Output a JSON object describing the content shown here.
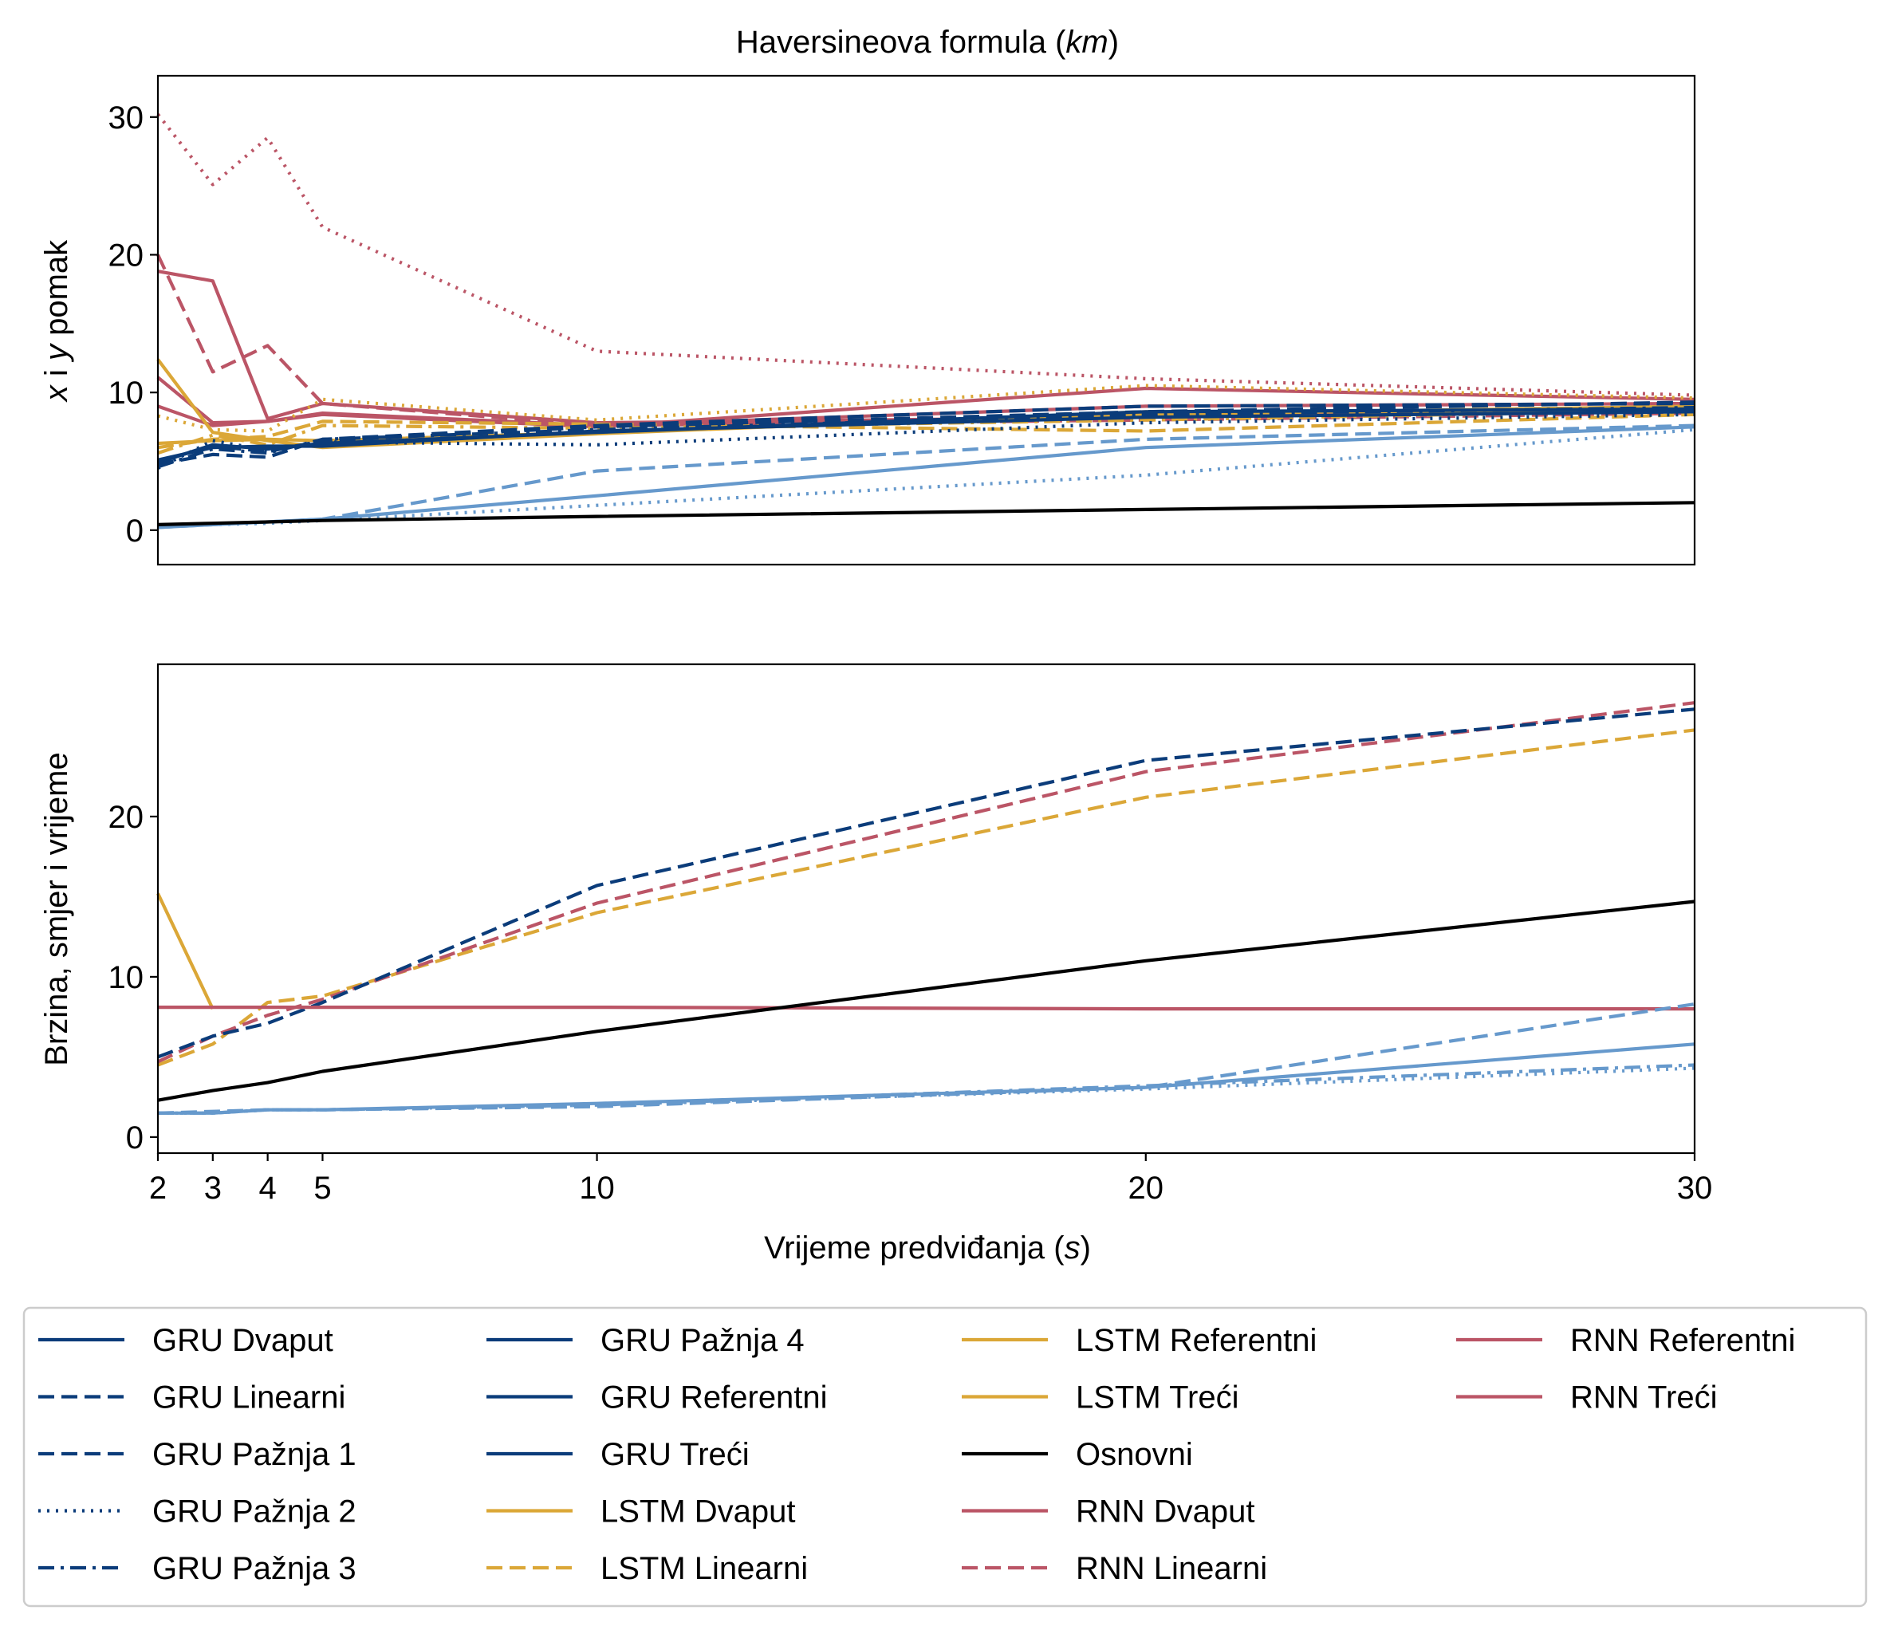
{
  "chart_data": {
    "type": "line",
    "x": [
      2,
      3,
      4,
      5,
      10,
      20,
      30
    ],
    "xlabel": "Vrijeme predviđanja (s)",
    "xticks": [
      2,
      3,
      4,
      5,
      10,
      20,
      30
    ],
    "xlim": [
      2,
      30
    ],
    "legend_placement": "bottom",
    "colors": {
      "gru": "#0b3c7a",
      "gru_light": "#6699cc",
      "lstm": "#dba737",
      "rnn": "#bb5566",
      "base": "#000000"
    },
    "legend": [
      {
        "label": "GRU Dvaput",
        "color": "#0b3c7a",
        "dash": "solid"
      },
      {
        "label": "GRU Linearni",
        "color": "#0b3c7a",
        "dash": "dashed"
      },
      {
        "label": "GRU Pažnja 1",
        "color": "#0b3c7a",
        "dash": "dashed"
      },
      {
        "label": "GRU Pažnja 2",
        "color": "#0b3c7a",
        "dash": "dotted"
      },
      {
        "label": "GRU Pažnja 3",
        "color": "#0b3c7a",
        "dash": "dashdot"
      },
      {
        "label": "GRU Pažnja 4",
        "color": "#0b3c7a",
        "dash": "solid"
      },
      {
        "label": "GRU Referentni",
        "color": "#0b3c7a",
        "dash": "solid"
      },
      {
        "label": "GRU Treći",
        "color": "#0b3c7a",
        "dash": "solid"
      },
      {
        "label": "LSTM Dvaput",
        "color": "#dba737",
        "dash": "solid"
      },
      {
        "label": "LSTM Linearni",
        "color": "#dba737",
        "dash": "dashed"
      },
      {
        "label": "LSTM Referentni",
        "color": "#dba737",
        "dash": "solid"
      },
      {
        "label": "LSTM Treći",
        "color": "#dba737",
        "dash": "solid"
      },
      {
        "label": "Osnovni",
        "color": "#000000",
        "dash": "solid"
      },
      {
        "label": "RNN Dvaput",
        "color": "#bb5566",
        "dash": "solid"
      },
      {
        "label": "RNN Linearni",
        "color": "#bb5566",
        "dash": "dashed"
      },
      {
        "label": "RNN Referentni",
        "color": "#bb5566",
        "dash": "solid"
      },
      {
        "label": "RNN Treći",
        "color": "#bb5566",
        "dash": "solid"
      }
    ],
    "panels": [
      {
        "title": "Haversineova formula (km)",
        "ylabel": "x i y pomak",
        "ylim": [
          -2.5,
          33
        ],
        "yticks": [
          0,
          10,
          20,
          30
        ],
        "series": [
          {
            "color": "#bb5566",
            "dash": "dotted",
            "values": [
              30.2,
              25.1,
              28.5,
              22.0,
              13.0,
              11.0,
              9.8
            ]
          },
          {
            "color": "#bb5566",
            "dash": "solid",
            "values": [
              18.8,
              18.1,
              8.1,
              9.2,
              7.8,
              8.2,
              8.8
            ]
          },
          {
            "color": "#bb5566",
            "dash": "dashed",
            "values": [
              20.0,
              11.5,
              13.4,
              9.2,
              7.6,
              8.0,
              8.5
            ]
          },
          {
            "color": "#bb5566",
            "dash": "solid",
            "values": [
              11.1,
              7.8,
              7.9,
              8.4,
              7.5,
              10.3,
              9.5
            ]
          },
          {
            "color": "#bb5566",
            "dash": "solid",
            "values": [
              9.0,
              7.6,
              7.9,
              8.5,
              7.6,
              9.0,
              9.2
            ]
          },
          {
            "color": "#dba737",
            "dash": "solid",
            "values": [
              12.4,
              7.1,
              6.5,
              6.0,
              7.0,
              8.6,
              8.6
            ]
          },
          {
            "color": "#dba737",
            "dash": "dotted",
            "values": [
              8.3,
              7.3,
              7.2,
              9.5,
              8.0,
              10.5,
              9.6
            ]
          },
          {
            "color": "#dba737",
            "dash": "dashed",
            "values": [
              6.0,
              6.6,
              6.8,
              7.9,
              7.7,
              7.2,
              8.4
            ]
          },
          {
            "color": "#dba737",
            "dash": "solid",
            "values": [
              6.3,
              6.5,
              6.6,
              6.5,
              7.1,
              8.4,
              9.0
            ]
          },
          {
            "color": "#dba737",
            "dash": "dashdot",
            "values": [
              5.6,
              6.9,
              6.2,
              7.6,
              7.4,
              8.0,
              8.7
            ]
          },
          {
            "color": "#0b3c7a",
            "dash": "dashed",
            "values": [
              4.8,
              5.5,
              5.3,
              6.6,
              7.6,
              9.0,
              9.2
            ]
          },
          {
            "color": "#0b3c7a",
            "dash": "dotted",
            "values": [
              4.5,
              6.5,
              5.8,
              6.4,
              6.2,
              7.8,
              8.4
            ]
          },
          {
            "color": "#0b3c7a",
            "dash": "solid",
            "values": [
              4.9,
              6.2,
              5.9,
              6.3,
              7.1,
              8.6,
              8.8
            ]
          },
          {
            "color": "#0b3c7a",
            "dash": "dashdot",
            "values": [
              4.6,
              5.9,
              5.6,
              6.6,
              7.3,
              8.4,
              8.9
            ]
          },
          {
            "color": "#0b3c7a",
            "dash": "dashed",
            "values": [
              5.0,
              6.1,
              5.7,
              6.5,
              7.5,
              8.6,
              9.3
            ]
          },
          {
            "color": "#0b3c7a",
            "dash": "solid",
            "values": [
              5.1,
              6.0,
              6.1,
              6.1,
              7.2,
              8.2,
              8.6
            ]
          },
          {
            "color": "#6699cc",
            "dash": "dashed",
            "values": [
              0.2,
              0.4,
              0.6,
              0.8,
              4.3,
              6.6,
              7.6
            ]
          },
          {
            "color": "#6699cc",
            "dash": "solid",
            "values": [
              0.2,
              0.4,
              0.6,
              0.8,
              2.5,
              6.0,
              7.5
            ]
          },
          {
            "color": "#6699cc",
            "dash": "dotted",
            "values": [
              0.3,
              0.4,
              0.5,
              0.7,
              1.8,
              4.0,
              7.3
            ]
          },
          {
            "color": "#000000",
            "dash": "solid",
            "values": [
              0.4,
              0.5,
              0.6,
              0.7,
              1.0,
              1.5,
              2.0
            ]
          }
        ]
      },
      {
        "title": "",
        "ylabel": "Brzina, smjer i vrijeme",
        "ylim": [
          -1.0,
          29.5
        ],
        "yticks": [
          0,
          10,
          20
        ],
        "series": [
          {
            "color": "#dba737",
            "dash": "solid",
            "values": [
              15.2,
              8.0,
              null,
              null,
              null,
              null,
              null
            ]
          },
          {
            "color": "#dba737",
            "dash": "dashed",
            "values": [
              4.5,
              5.8,
              8.4,
              8.8,
              14.0,
              21.2,
              25.4
            ]
          },
          {
            "color": "#bb5566",
            "dash": "dashed",
            "values": [
              4.7,
              6.3,
              7.6,
              8.6,
              14.6,
              22.8,
              27.1
            ]
          },
          {
            "color": "#0b3c7a",
            "dash": "dashed",
            "values": [
              5.0,
              6.3,
              7.1,
              8.4,
              15.7,
              23.5,
              26.7
            ]
          },
          {
            "color": "#bb5566",
            "dash": "solid",
            "values": [
              8.1,
              8.1,
              8.1,
              8.1,
              8.1,
              8.0,
              8.0
            ]
          },
          {
            "color": "#000000",
            "dash": "solid",
            "values": [
              2.3,
              2.9,
              3.4,
              4.1,
              6.6,
              11.0,
              14.7
            ]
          },
          {
            "color": "#6699cc",
            "dash": "dashed",
            "values": [
              1.5,
              1.6,
              1.7,
              1.7,
              1.9,
              3.1,
              8.3
            ]
          },
          {
            "color": "#6699cc",
            "dash": "solid",
            "values": [
              1.5,
              1.5,
              1.7,
              1.7,
              2.1,
              3.1,
              5.8
            ]
          },
          {
            "color": "#6699cc",
            "dash": "dashdot",
            "values": [
              1.5,
              1.5,
              1.7,
              1.7,
              2.0,
              3.2,
              4.5
            ]
          },
          {
            "color": "#6699cc",
            "dash": "dotted",
            "values": [
              1.5,
              1.5,
              1.7,
              1.7,
              2.0,
              3.0,
              4.3
            ]
          }
        ]
      }
    ]
  }
}
